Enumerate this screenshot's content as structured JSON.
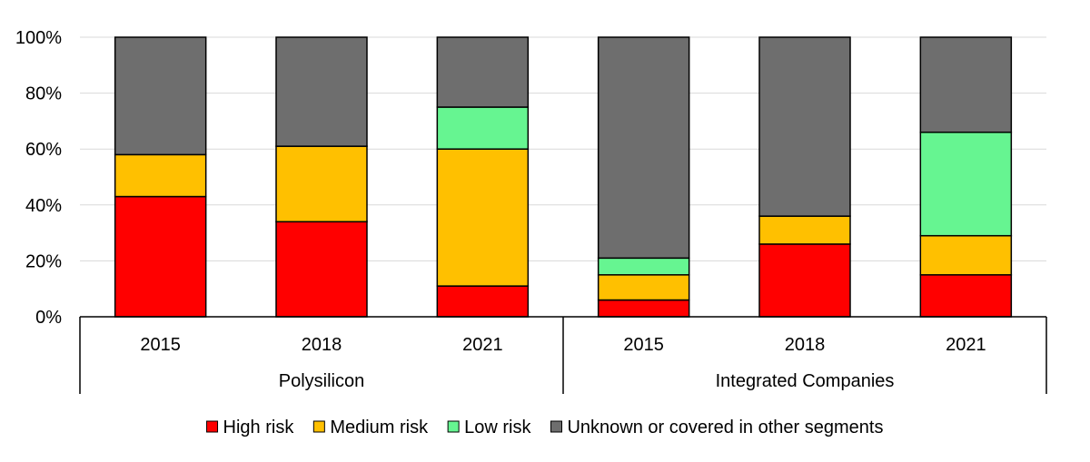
{
  "chart_data": {
    "type": "bar",
    "stacked": true,
    "y_format": "percent",
    "ylim": [
      0,
      100
    ],
    "yticks": [
      0,
      20,
      40,
      60,
      80,
      100
    ],
    "ytick_labels": [
      "0%",
      "20%",
      "40%",
      "60%",
      "80%",
      "100%"
    ],
    "grid": true,
    "legend_position": "bottom",
    "categories": [
      "2015",
      "2018",
      "2021",
      "2015",
      "2018",
      "2021"
    ],
    "groups": [
      {
        "label": "Polysilicon",
        "categories": [
          "2015",
          "2018",
          "2021"
        ]
      },
      {
        "label": "Integrated Companies",
        "categories": [
          "2015",
          "2018",
          "2021"
        ]
      }
    ],
    "series": [
      {
        "name": "High risk",
        "color": "#ff0000",
        "values": [
          43,
          34,
          11,
          6,
          26,
          15
        ]
      },
      {
        "name": "Medium risk",
        "color": "#ffc000",
        "values": [
          15,
          27,
          49,
          9,
          10,
          14
        ]
      },
      {
        "name": "Low risk",
        "color": "#66f591",
        "values": [
          0,
          0,
          15,
          6,
          0,
          37
        ]
      },
      {
        "name": "Unknown or covered in other segments",
        "color": "#6e6e6e",
        "values": [
          42,
          39,
          25,
          79,
          64,
          34
        ]
      }
    ]
  }
}
